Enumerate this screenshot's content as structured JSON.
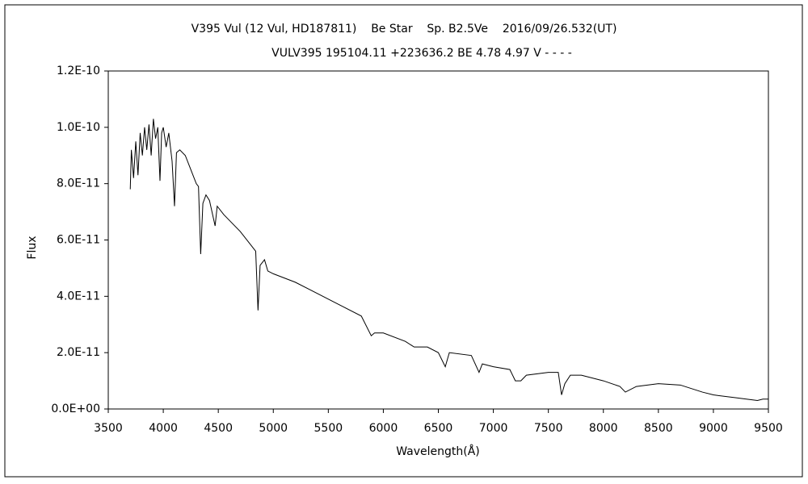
{
  "chart_data": {
    "type": "line",
    "title": "V395 Vul (12 Vul, HD187811)    Be Star    Sp. B2.5Ve    2016/09/26.532(UT)",
    "subtitle": "VULV395 195104.11 +223636.2 BE 4.78 4.97 V - - - -",
    "x_label": "Wavelength(Å)",
    "y_label": "Flux",
    "color": "#000000",
    "xlim": [
      3500,
      9500
    ],
    "ylim": [
      0,
      1.2e-10
    ],
    "xticks": [
      3500,
      4000,
      4500,
      5000,
      5500,
      6000,
      6500,
      7000,
      7500,
      8000,
      8500,
      9000,
      9500
    ],
    "yticks": [
      {
        "value": 0,
        "label": "0.0E+00"
      },
      {
        "value": 2e-11,
        "label": "2.0E-11"
      },
      {
        "value": 4e-11,
        "label": "4.0E-11"
      },
      {
        "value": 6e-11,
        "label": "6.0E-11"
      },
      {
        "value": 8e-11,
        "label": "8.0E-11"
      },
      {
        "value": 1e-10,
        "label": "1.0E-10"
      },
      {
        "value": 1.2e-10,
        "label": "1.2E-10"
      }
    ],
    "x": [
      3700,
      3710,
      3730,
      3750,
      3770,
      3790,
      3810,
      3830,
      3850,
      3870,
      3890,
      3910,
      3930,
      3950,
      3970,
      3985,
      4000,
      4026,
      4050,
      4080,
      4102,
      4120,
      4150,
      4200,
      4250,
      4300,
      4320,
      4340,
      4360,
      4388,
      4420,
      4471,
      4490,
      4550,
      4600,
      4700,
      4800,
      4840,
      4861,
      4880,
      4920,
      4950,
      5000,
      5200,
      5400,
      5600,
      5800,
      5890,
      5920,
      6000,
      6200,
      6280,
      6400,
      6500,
      6563,
      6600,
      6800,
      6870,
      6900,
      7000,
      7150,
      7200,
      7250,
      7300,
      7500,
      7590,
      7620,
      7650,
      7700,
      7800,
      8000,
      8150,
      8200,
      8300,
      8500,
      8700,
      8900,
      9000,
      9200,
      9400,
      9450,
      9500
    ],
    "values": [
      7.8e-11,
      9.2e-11,
      8.2e-11,
      9.5e-11,
      8.3e-11,
      9.8e-11,
      9e-11,
      1e-10,
      9.2e-11,
      1.01e-10,
      9e-11,
      1.03e-10,
      9.6e-11,
      1e-10,
      8.1e-11,
      9.8e-11,
      1e-10,
      9.3e-11,
      9.8e-11,
      8.8e-11,
      7.2e-11,
      9.1e-11,
      9.2e-11,
      9e-11,
      8.5e-11,
      8e-11,
      7.9e-11,
      5.5e-11,
      7.3e-11,
      7.6e-11,
      7.4e-11,
      6.5e-11,
      7.2e-11,
      6.9e-11,
      6.7e-11,
      6.3e-11,
      5.8e-11,
      5.6e-11,
      3.5e-11,
      5.1e-11,
      5.3e-11,
      4.9e-11,
      4.8e-11,
      4.5e-11,
      4.1e-11,
      3.7e-11,
      3.3e-11,
      2.6e-11,
      2.7e-11,
      2.7e-11,
      2.4e-11,
      2.2e-11,
      2.2e-11,
      2e-11,
      1.5e-11,
      2e-11,
      1.9e-11,
      1.3e-11,
      1.6e-11,
      1.5e-11,
      1.4e-11,
      1e-11,
      1e-11,
      1.2e-11,
      1.3e-11,
      1.3e-11,
      5e-12,
      9e-12,
      1.2e-11,
      1.2e-11,
      1e-11,
      8e-12,
      6e-12,
      8e-12,
      9e-12,
      8.5e-12,
      6e-12,
      5e-12,
      4e-12,
      3e-12,
      3.5e-12,
      3.5e-12
    ]
  }
}
